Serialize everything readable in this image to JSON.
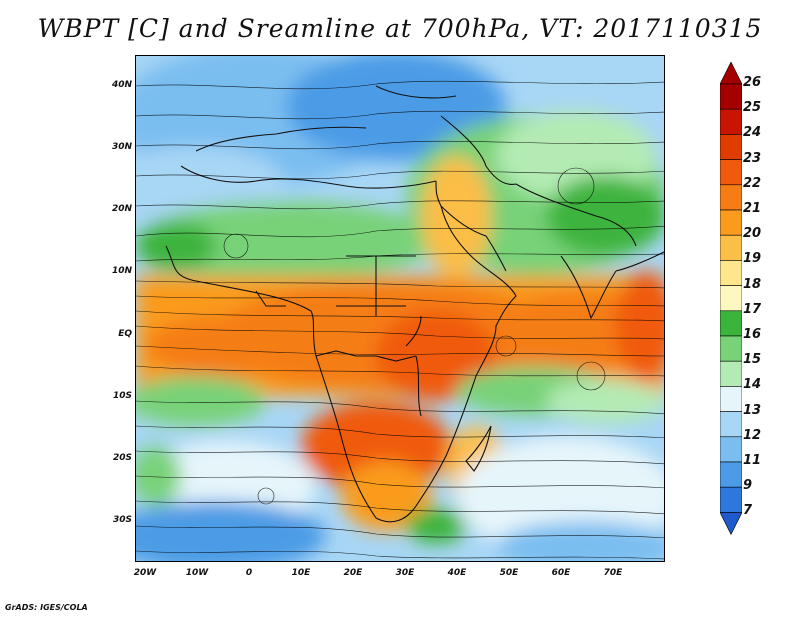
{
  "title": "WBPT [C] and Sreamline at 700hPa, VT: 2017110315",
  "credit": "GrADS: IGES/COLA",
  "map": {
    "lat_labels": [
      "40N",
      "30N",
      "20N",
      "10N",
      "EQ",
      "10S",
      "20S",
      "30S"
    ],
    "lon_labels": [
      "20W",
      "10W",
      "0",
      "10E",
      "20E",
      "30E",
      "40E",
      "50E",
      "60E",
      "70E"
    ]
  },
  "colorbar": {
    "levels": [
      "26",
      "25",
      "24",
      "23",
      "22",
      "21",
      "20",
      "19",
      "18",
      "17",
      "16",
      "15",
      "14",
      "13",
      "12",
      "11",
      "9",
      "7"
    ],
    "colors": {
      "26": "#a50000",
      "25": "#c81400",
      "24": "#e13c00",
      "23": "#f05a0f",
      "22": "#f57d14",
      "21": "#fa9b1e",
      "20": "#fbbe46",
      "19": "#fde68c",
      "18": "#fdf8c0",
      "17": "#3cb43c",
      "16": "#78d278",
      "15": "#b4ebb4",
      "14": "#e6f5fa",
      "13": "#a8d6f5",
      "12": "#7abef0",
      "11": "#4b9be6",
      "9": "#2d78dc",
      "7": "#1e5acd"
    }
  }
}
